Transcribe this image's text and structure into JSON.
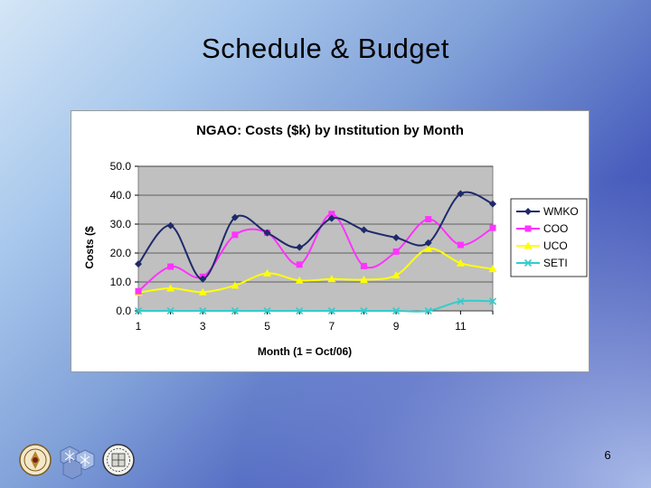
{
  "slide": {
    "title": "Schedule & Budget",
    "page_number": "6"
  },
  "logos": [
    {
      "icon": "university-seal-icon"
    },
    {
      "icon": "snowflake-crystal-icon"
    },
    {
      "icon": "institutional-crest-icon"
    }
  ],
  "chart_data": {
    "type": "line",
    "title": "NGAO: Costs ($k) by Institution by Month",
    "xlabel": "Month (1 = Oct/06)",
    "ylabel": "Costs ($",
    "x": [
      1,
      2,
      3,
      4,
      5,
      6,
      7,
      8,
      9,
      10,
      11,
      12
    ],
    "x_tick_labels": [
      "1",
      "3",
      "5",
      "7",
      "9",
      "11"
    ],
    "x_tick_values": [
      1,
      3,
      5,
      7,
      9,
      11
    ],
    "ylim": [
      0,
      50
    ],
    "y_tick_labels": [
      "0.0",
      "10.0",
      "20.0",
      "30.0",
      "40.0",
      "50.0"
    ],
    "y_tick_values": [
      0,
      10,
      20,
      30,
      40,
      50
    ],
    "grid": true,
    "plot_background": "#c0c0c0",
    "legend_position": "right",
    "series": [
      {
        "name": "WMKO",
        "color": "#1f2a6b",
        "marker": "diamond",
        "values": [
          16.2,
          29.5,
          11.0,
          32.3,
          27.0,
          22.0,
          32.0,
          28.0,
          25.3,
          23.5,
          40.5,
          37.0
        ]
      },
      {
        "name": "COO",
        "color": "#ff33ff",
        "marker": "square",
        "values": [
          6.8,
          15.3,
          11.8,
          26.3,
          27.0,
          16.0,
          33.5,
          15.5,
          20.5,
          31.7,
          22.8,
          28.7
        ]
      },
      {
        "name": "UCO",
        "color": "#ffff00",
        "marker": "triangle",
        "values": [
          6.3,
          7.8,
          6.5,
          8.8,
          13.0,
          10.5,
          11.0,
          10.8,
          12.3,
          21.5,
          16.5,
          14.5
        ]
      },
      {
        "name": "SETI",
        "color": "#33cccc",
        "marker": "x",
        "values": [
          0,
          0,
          0,
          0,
          0,
          0,
          0,
          0,
          0,
          0,
          3.3,
          3.3
        ]
      }
    ]
  }
}
